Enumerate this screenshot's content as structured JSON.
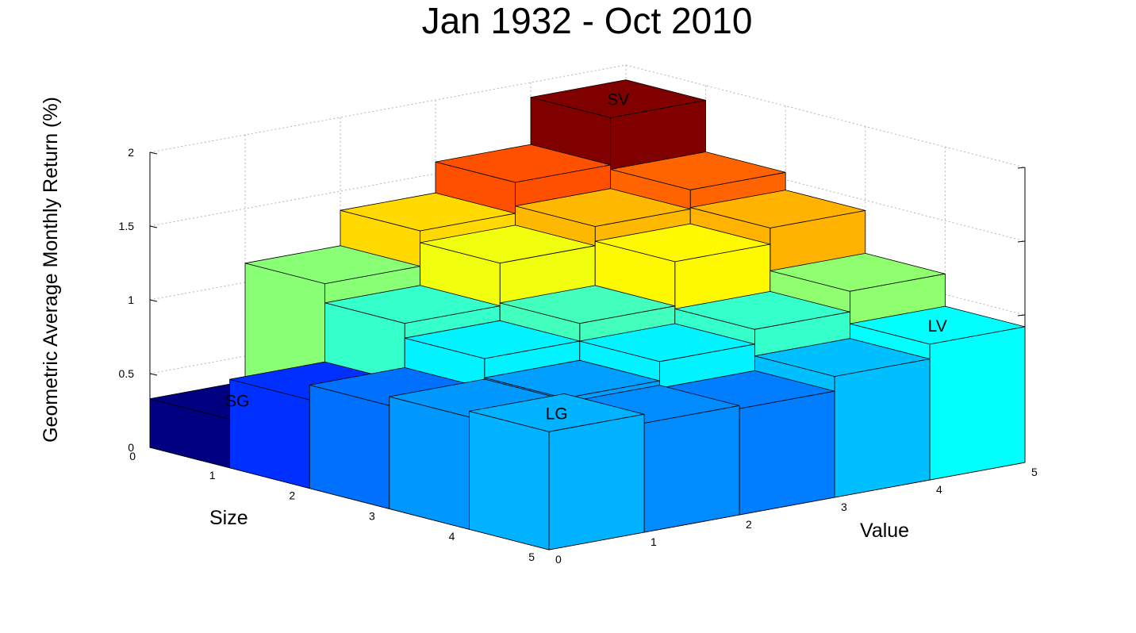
{
  "chart_data": {
    "type": "bar3d",
    "title": "Jan 1932 - Oct 2010",
    "xlabel": "Value",
    "ylabel": "Size",
    "zlabel": "Geometric Average Monthly Return (%)",
    "x_ticks": [
      "0",
      "1",
      "2",
      "3",
      "4",
      "5"
    ],
    "y_ticks": [
      "0",
      "1",
      "2",
      "3",
      "4",
      "5"
    ],
    "z_ticks": [
      "0",
      "0.5",
      "1",
      "1.5",
      "2"
    ],
    "zlim": [
      0,
      2
    ],
    "grid": true,
    "rows_size": [
      "1",
      "2",
      "3",
      "4",
      "5"
    ],
    "cols_value": [
      "1",
      "2",
      "3",
      "4",
      "5"
    ],
    "values": [
      [
        0.33,
        1.13,
        1.37,
        1.58,
        1.9
      ],
      [
        0.6,
        1.0,
        1.29,
        1.42,
        1.55
      ],
      [
        0.7,
        0.9,
        1.02,
        1.32,
        1.43
      ],
      [
        0.76,
        0.77,
        0.9,
        1.0,
        1.14
      ],
      [
        0.8,
        0.74,
        0.72,
        0.82,
        0.92
      ]
    ],
    "colormap": "jet",
    "color_range": [
      0.33,
      1.9
    ],
    "corner_labels": [
      {
        "text": "SG",
        "row": 0,
        "col": 0
      },
      {
        "text": "SV",
        "row": 0,
        "col": 4
      },
      {
        "text": "LG",
        "row": 4,
        "col": 0
      },
      {
        "text": "LV",
        "row": 4,
        "col": 4
      }
    ]
  }
}
